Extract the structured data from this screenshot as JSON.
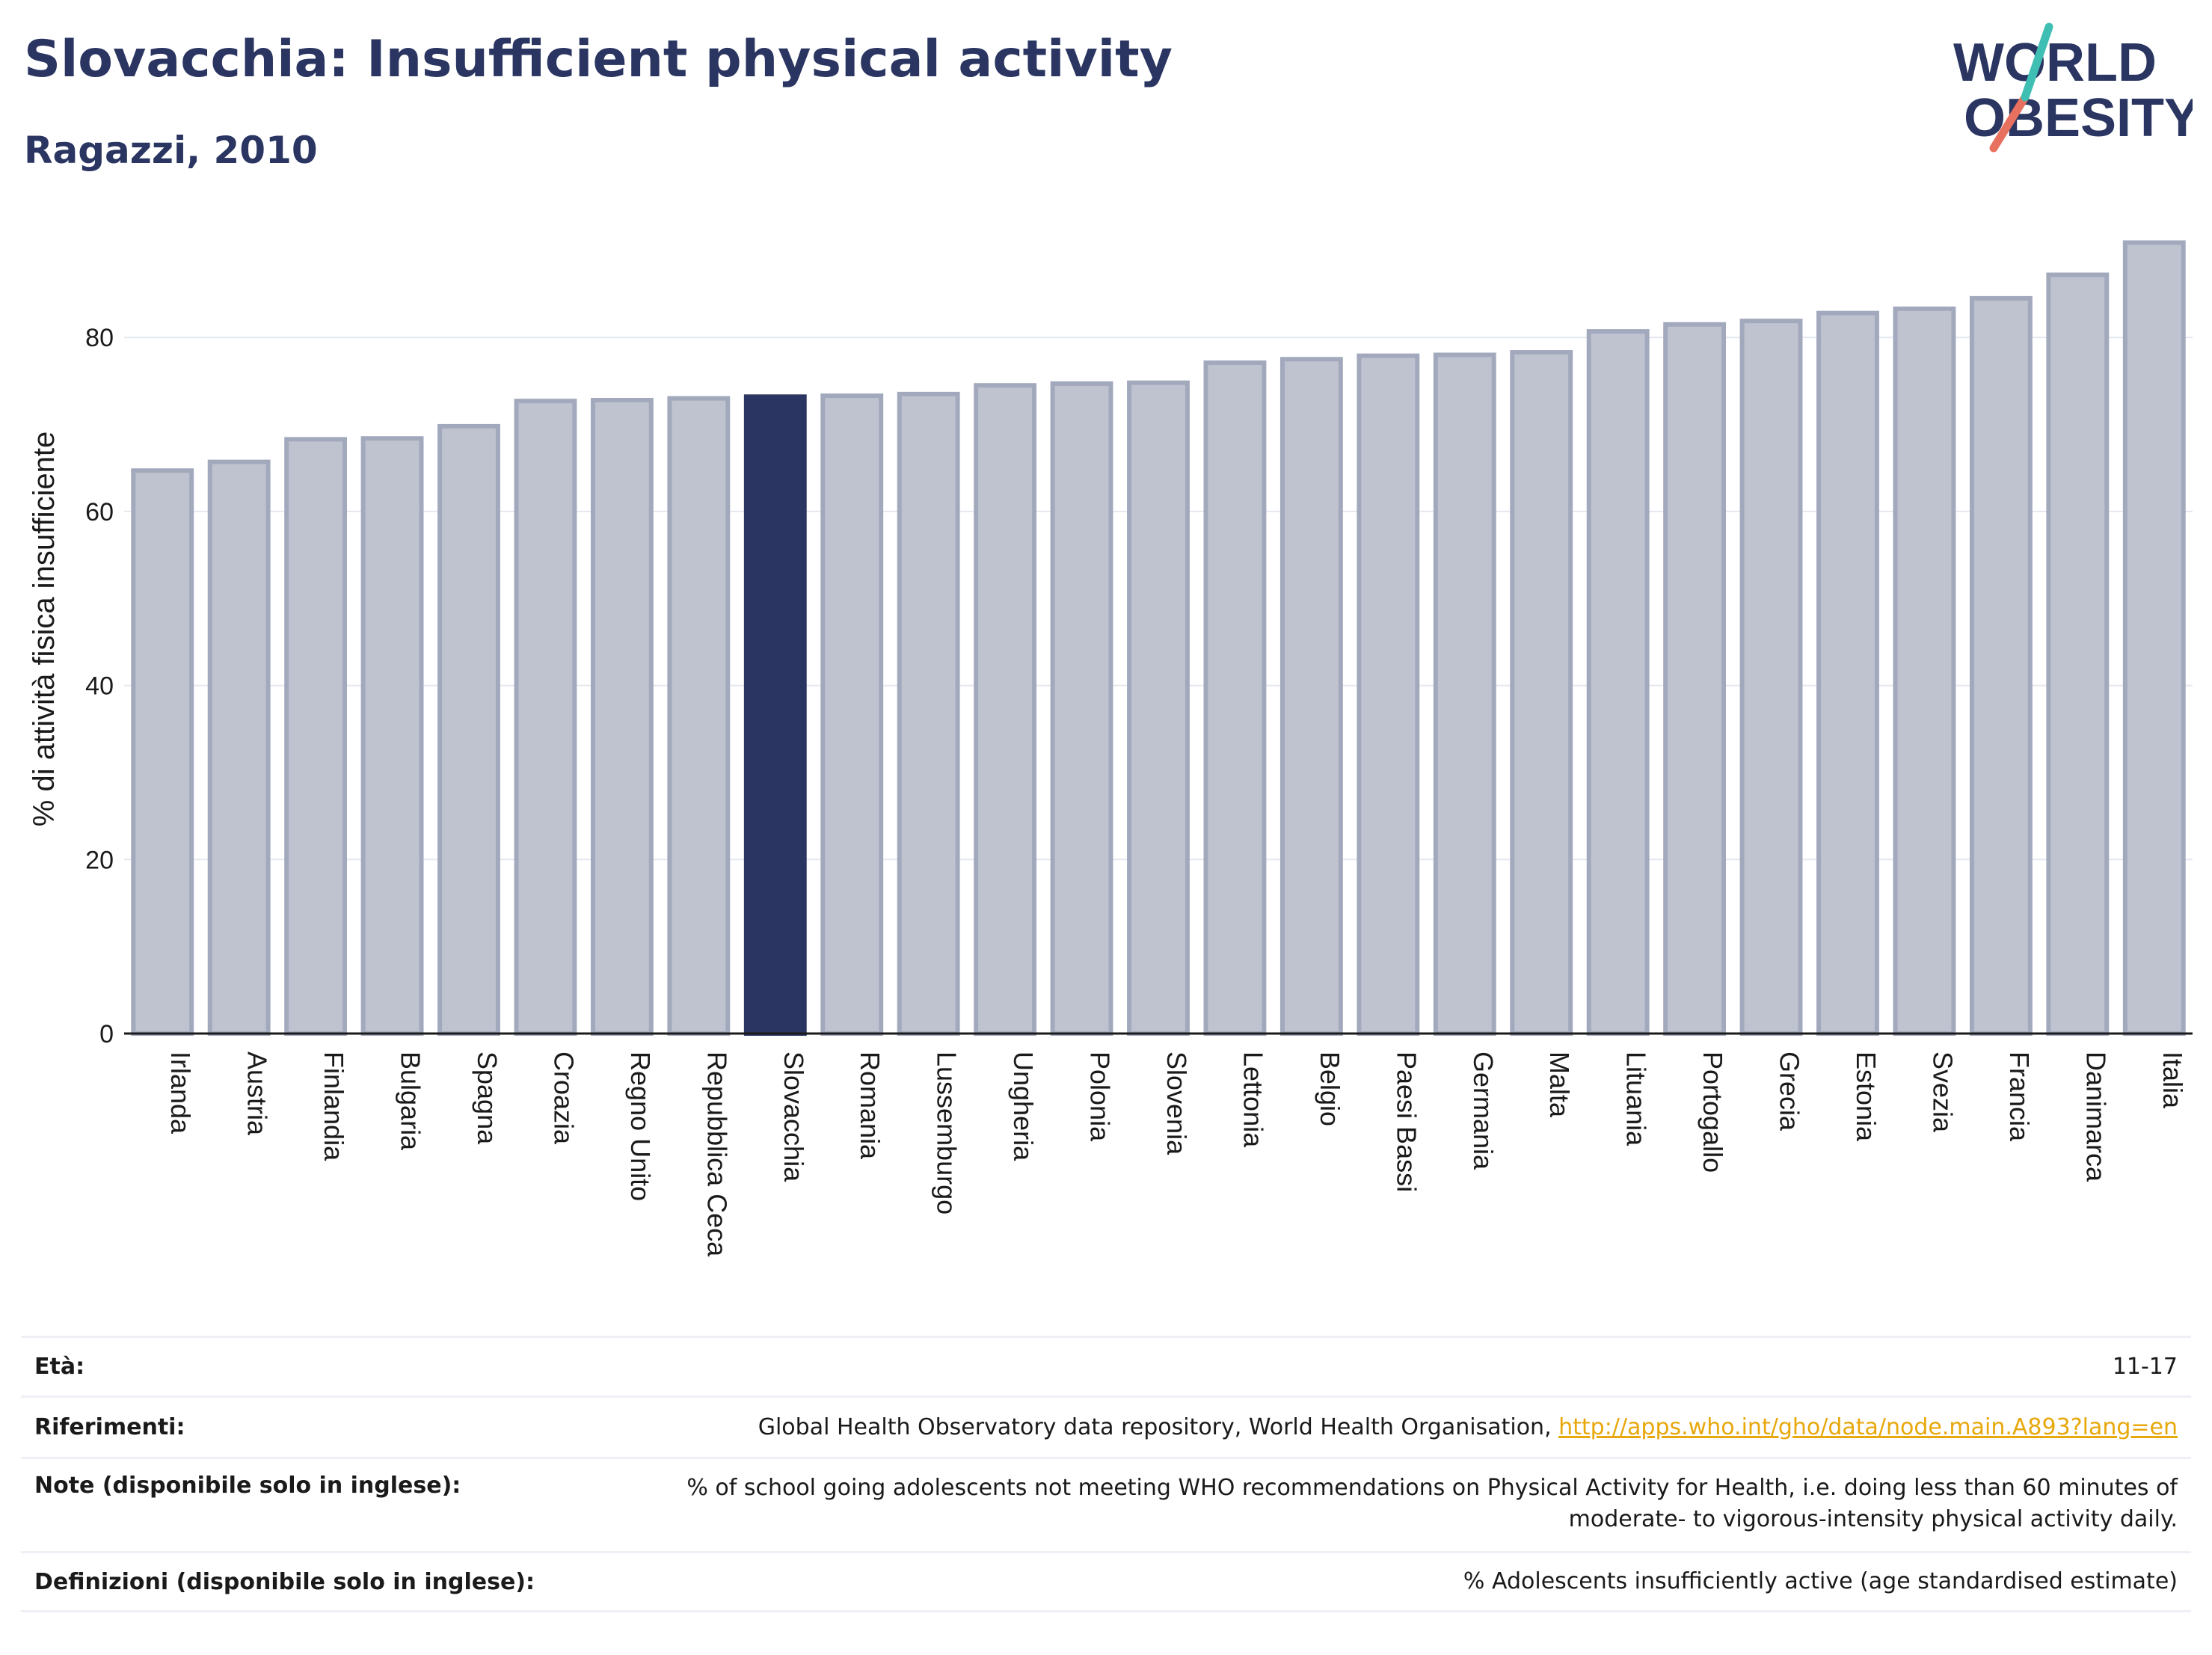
{
  "header": {
    "title": "Slovacchia: Insufficient physical activity",
    "subtitle": "Ragazzi, 2010"
  },
  "logo": {
    "line1": "WORLD",
    "line2": "OBESITY"
  },
  "colors": {
    "highlight": "#2a3561",
    "bar_fill": "#bfc3d0",
    "bar_stroke": "#a3a9bd",
    "accent_teal": "#3fbfb3",
    "accent_coral": "#e8705f"
  },
  "chart_data": {
    "type": "bar",
    "ylabel": "% di attività fisica insufficiente",
    "xlabel": "",
    "ylim": [
      0,
      93
    ],
    "yticks": [
      0,
      20,
      40,
      60,
      80
    ],
    "grid": true,
    "highlight": "Slovacchia",
    "categories": [
      "Irlanda",
      "Austria",
      "Finlandia",
      "Bulgaria",
      "Spagna",
      "Croazia",
      "Regno Unito",
      "Repubblica Ceca",
      "Slovacchia",
      "Romania",
      "Lussemburgo",
      "Ungheria",
      "Polonia",
      "Slovenia",
      "Lettonia",
      "Belgio",
      "Paesi Bassi",
      "Germania",
      "Malta",
      "Lituania",
      "Portogallo",
      "Grecia",
      "Estonia",
      "Svezia",
      "Francia",
      "Danimarca",
      "Italia"
    ],
    "values": [
      64.7,
      65.7,
      68.3,
      68.4,
      69.8,
      72.7,
      72.8,
      73.0,
      73.2,
      73.3,
      73.5,
      74.5,
      74.7,
      74.8,
      77.1,
      77.5,
      77.9,
      78.0,
      78.3,
      80.7,
      81.5,
      81.9,
      82.8,
      83.3,
      84.5,
      87.2,
      90.9
    ]
  },
  "info": [
    {
      "label": "Età:",
      "value": "11-17"
    },
    {
      "label": "Riferimenti:",
      "value": "Global Health Observatory data repository, World Health Organisation, ",
      "link": "http://apps.who.int/gho/data/node.main.A893?lang=en"
    },
    {
      "label": "Note (disponibile solo in inglese):",
      "value": "% of school going adolescents not meeting WHO recommendations on Physical Activity for Health, i.e. doing less than 60 minutes of moderate- to vigorous-intensity physical activity daily."
    },
    {
      "label": "Definizioni (disponibile solo in inglese):",
      "value": "% Adolescents insufficiently active (age standardised estimate)"
    }
  ]
}
